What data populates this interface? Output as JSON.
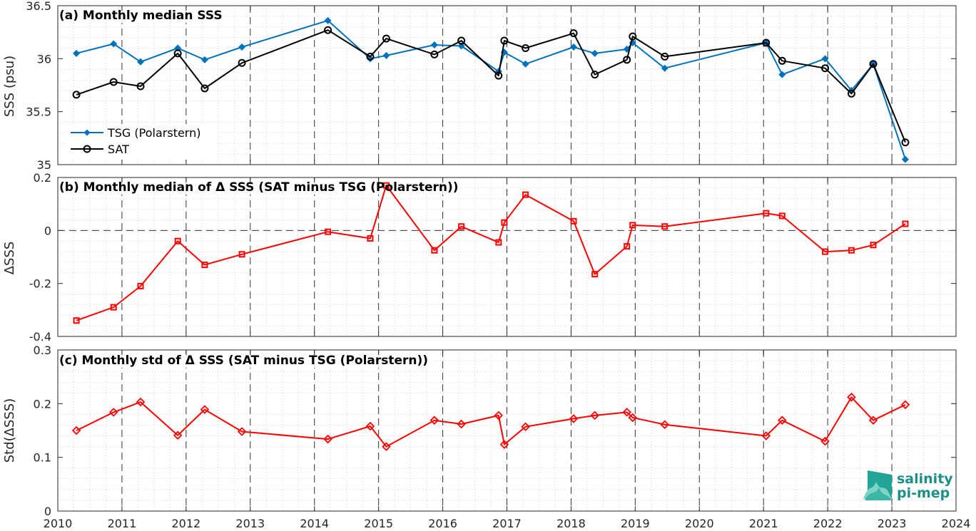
{
  "chart_data": [
    {
      "type": "line",
      "title": "(a) Monthly median SSS",
      "xlabel": "",
      "ylabel": "SSS (psu)",
      "xlim": [
        2010,
        2024
      ],
      "ylim": [
        35,
        36.5
      ],
      "yticks": [
        "35",
        "35.5",
        "36",
        "36.5"
      ],
      "grid": "minor-dotted",
      "legend_position": "bottom-left",
      "series": [
        {
          "name": "TSG (Polarstern)",
          "color": "#0072bd",
          "marker": "diamond",
          "x": [
            2010.29,
            2010.87,
            2011.29,
            2011.87,
            2012.29,
            2012.87,
            2014.21,
            2014.87,
            2015.12,
            2015.87,
            2016.29,
            2016.87,
            2016.96,
            2017.29,
            2018.04,
            2018.37,
            2018.87,
            2018.96,
            2019.46,
            2021.04,
            2021.29,
            2021.96,
            2022.37,
            2022.71,
            2023.21
          ],
          "values": [
            36.05,
            36.14,
            35.97,
            36.1,
            35.99,
            36.11,
            36.36,
            36.0,
            36.03,
            36.13,
            36.12,
            35.88,
            36.06,
            35.95,
            36.11,
            36.05,
            36.09,
            36.15,
            35.91,
            36.15,
            35.85,
            36.0,
            35.7,
            35.95,
            35.05
          ]
        },
        {
          "name": "SAT",
          "color": "#000000",
          "marker": "circle",
          "x": [
            2010.29,
            2010.87,
            2011.29,
            2011.87,
            2012.29,
            2012.87,
            2014.21,
            2014.87,
            2015.12,
            2015.87,
            2016.29,
            2016.87,
            2016.96,
            2017.29,
            2018.04,
            2018.37,
            2018.87,
            2018.96,
            2019.46,
            2021.04,
            2021.29,
            2021.96,
            2022.37,
            2022.71,
            2023.21
          ],
          "values": [
            35.66,
            35.78,
            35.74,
            36.05,
            35.72,
            35.96,
            36.27,
            36.02,
            36.19,
            36.04,
            36.17,
            35.84,
            36.17,
            36.1,
            36.24,
            35.85,
            35.99,
            36.21,
            36.02,
            36.15,
            35.98,
            35.91,
            35.67,
            35.95,
            35.21
          ]
        }
      ]
    },
    {
      "type": "line",
      "title": "(b) Monthly median of Δ SSS (SAT minus TSG (Polarstern))",
      "xlabel": "",
      "ylabel": "ΔSSS",
      "xlim": [
        2010,
        2024
      ],
      "ylim": [
        -0.4,
        0.2
      ],
      "yticks": [
        "-0.4",
        "-0.2",
        "0",
        "0.2"
      ],
      "zero_line": "dashed",
      "series": [
        {
          "name": "",
          "color": "#ff0000",
          "marker": "square",
          "x": [
            2010.29,
            2010.87,
            2011.29,
            2011.87,
            2012.29,
            2012.87,
            2014.21,
            2014.87,
            2015.12,
            2015.87,
            2016.29,
            2016.87,
            2016.96,
            2017.29,
            2018.04,
            2018.37,
            2018.87,
            2018.96,
            2019.46,
            2021.04,
            2021.29,
            2021.96,
            2022.37,
            2022.71,
            2023.21
          ],
          "values": [
            -0.34,
            -0.29,
            -0.21,
            -0.04,
            -0.13,
            -0.09,
            -0.005,
            -0.03,
            0.17,
            -0.075,
            0.015,
            -0.045,
            0.03,
            0.135,
            0.035,
            -0.165,
            -0.06,
            0.02,
            0.015,
            0.065,
            0.055,
            -0.08,
            -0.075,
            -0.055,
            0.025
          ]
        }
      ]
    },
    {
      "type": "line",
      "title": "(c) Monthly std of Δ SSS (SAT minus TSG (Polarstern))",
      "xlabel": "",
      "ylabel": "Std(ΔSSS)",
      "xlim": [
        2010,
        2024
      ],
      "ylim": [
        0,
        0.3
      ],
      "yticks": [
        "0",
        "0.1",
        "0.2",
        "0.3"
      ],
      "series": [
        {
          "name": "",
          "color": "#ff0000",
          "marker": "diamond",
          "x": [
            2010.29,
            2010.87,
            2011.29,
            2011.87,
            2012.29,
            2012.87,
            2014.21,
            2014.87,
            2015.12,
            2015.87,
            2016.29,
            2016.87,
            2016.96,
            2017.29,
            2018.04,
            2018.37,
            2018.87,
            2018.96,
            2019.46,
            2021.04,
            2021.29,
            2021.96,
            2022.37,
            2022.71,
            2023.21
          ],
          "values": [
            0.15,
            0.184,
            0.203,
            0.141,
            0.189,
            0.148,
            0.134,
            0.158,
            0.12,
            0.169,
            0.162,
            0.178,
            0.124,
            0.157,
            0.172,
            0.178,
            0.184,
            0.174,
            0.161,
            0.14,
            0.169,
            0.13,
            0.212,
            0.169,
            0.198
          ]
        }
      ]
    }
  ],
  "xticks": [
    "2010",
    "2011",
    "2012",
    "2013",
    "2014",
    "2015",
    "2016",
    "2017",
    "2018",
    "2019",
    "2020",
    "2021",
    "2022",
    "2023",
    "2024"
  ],
  "logo": {
    "line1": "salinity",
    "line2": "pi-mep",
    "color": "#1d8f87"
  }
}
